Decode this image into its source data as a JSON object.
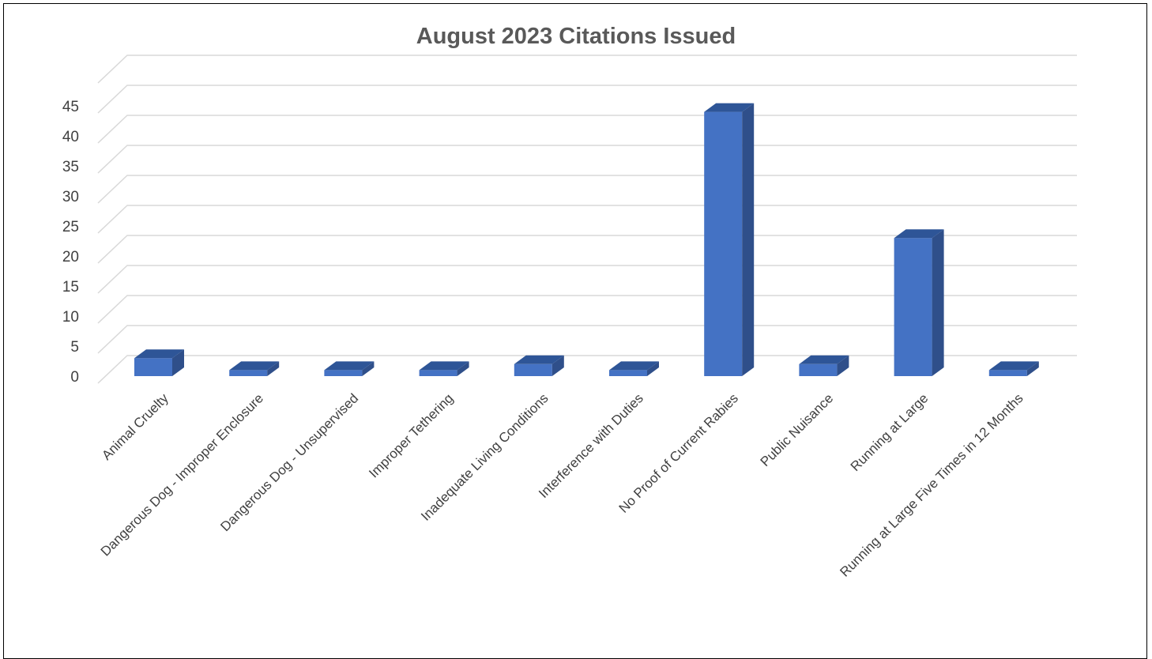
{
  "chart_data": {
    "type": "bar",
    "title": "August 2023 Citations Issued",
    "categories": [
      "Animal Cruelty",
      "Dangerous Dog - Improper Enclosure",
      "Dangerous Dog - Unsupervised",
      "Improper Tethering",
      "Inadequate Living Conditions",
      "Interference with Duties",
      "No Proof of Current Rabies",
      "Public Nuisance",
      "Running at Large",
      "Running at Large Five Times in 12 Months"
    ],
    "values": [
      3,
      1,
      1,
      1,
      2,
      1,
      44,
      2,
      23,
      1
    ],
    "ylim": [
      0,
      45
    ],
    "yticks": [
      0,
      5,
      10,
      15,
      20,
      25,
      30,
      35,
      40,
      45
    ],
    "grid": true,
    "legend": "none",
    "style": "3d-column",
    "colors": {
      "bar_front": "#4472C4",
      "bar_side": "#2F4F8A",
      "bar_top": "#2E5597",
      "grid": "#D9D9D9",
      "title": "#595959",
      "text": "#404040"
    }
  }
}
